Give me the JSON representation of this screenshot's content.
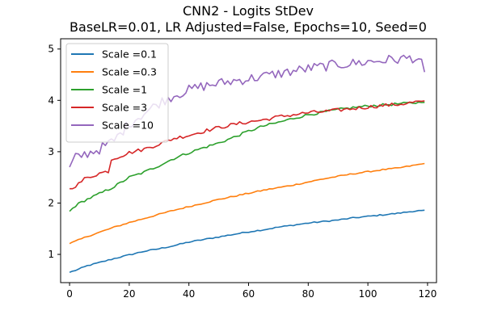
{
  "chart_data": {
    "type": "line",
    "title": "CNN2 - Logits StDev",
    "subtitle": "BaseLR=0.01, LR Adjusted=False, Epochs=10, Seed=0",
    "xlabel": "",
    "ylabel": "",
    "xlim": [
      -3,
      123
    ],
    "ylim": [
      0.45,
      5.2
    ],
    "xticks": [
      0,
      20,
      40,
      60,
      80,
      100,
      120
    ],
    "yticks": [
      1,
      2,
      3,
      4,
      5
    ],
    "grid": false,
    "legend_position": "top-left",
    "series": [
      {
        "name": "Scale =0.1",
        "color": "#1f77b4",
        "anchors": [
          [
            0,
            0.65
          ],
          [
            3,
            0.71
          ],
          [
            6,
            0.78
          ],
          [
            10,
            0.84
          ],
          [
            15,
            0.92
          ],
          [
            20,
            0.99
          ],
          [
            25,
            1.06
          ],
          [
            30,
            1.11
          ],
          [
            35,
            1.17
          ],
          [
            40,
            1.24
          ],
          [
            45,
            1.29
          ],
          [
            50,
            1.34
          ],
          [
            55,
            1.39
          ],
          [
            60,
            1.44
          ],
          [
            65,
            1.48
          ],
          [
            70,
            1.53
          ],
          [
            75,
            1.57
          ],
          [
            80,
            1.61
          ],
          [
            85,
            1.64
          ],
          [
            90,
            1.67
          ],
          [
            95,
            1.71
          ],
          [
            100,
            1.74
          ],
          [
            105,
            1.77
          ],
          [
            110,
            1.8
          ],
          [
            115,
            1.84
          ],
          [
            119,
            1.86
          ]
        ],
        "noise": 0.012
      },
      {
        "name": "Scale =0.3",
        "color": "#ff7f0e",
        "anchors": [
          [
            0,
            1.21
          ],
          [
            3,
            1.28
          ],
          [
            6,
            1.35
          ],
          [
            10,
            1.43
          ],
          [
            15,
            1.53
          ],
          [
            20,
            1.62
          ],
          [
            25,
            1.7
          ],
          [
            30,
            1.78
          ],
          [
            35,
            1.86
          ],
          [
            40,
            1.93
          ],
          [
            45,
            2.0
          ],
          [
            50,
            2.07
          ],
          [
            55,
            2.13
          ],
          [
            60,
            2.19
          ],
          [
            65,
            2.25
          ],
          [
            70,
            2.3
          ],
          [
            75,
            2.35
          ],
          [
            80,
            2.41
          ],
          [
            85,
            2.47
          ],
          [
            90,
            2.52
          ],
          [
            95,
            2.57
          ],
          [
            100,
            2.61
          ],
          [
            105,
            2.65
          ],
          [
            110,
            2.68
          ],
          [
            115,
            2.73
          ],
          [
            119,
            2.77
          ]
        ],
        "noise": 0.012
      },
      {
        "name": "Scale =1",
        "color": "#2ca02c",
        "anchors": [
          [
            0,
            1.84
          ],
          [
            2,
            1.95
          ],
          [
            5,
            2.05
          ],
          [
            10,
            2.18
          ],
          [
            15,
            2.32
          ],
          [
            20,
            2.5
          ],
          [
            25,
            2.6
          ],
          [
            30,
            2.73
          ],
          [
            35,
            2.87
          ],
          [
            40,
            2.98
          ],
          [
            45,
            3.08
          ],
          [
            50,
            3.17
          ],
          [
            55,
            3.28
          ],
          [
            60,
            3.4
          ],
          [
            65,
            3.5
          ],
          [
            70,
            3.57
          ],
          [
            75,
            3.65
          ],
          [
            80,
            3.72
          ],
          [
            85,
            3.77
          ],
          [
            90,
            3.82
          ],
          [
            95,
            3.86
          ],
          [
            100,
            3.89
          ],
          [
            105,
            3.91
          ],
          [
            110,
            3.93
          ],
          [
            115,
            3.95
          ],
          [
            119,
            3.96
          ]
        ],
        "noise": 0.025
      },
      {
        "name": "Scale =3",
        "color": "#d62728",
        "anchors": [
          [
            0,
            2.28
          ],
          [
            3,
            2.37
          ],
          [
            5,
            2.47
          ],
          [
            10,
            2.58
          ],
          [
            13,
            2.62
          ],
          [
            14,
            2.85
          ],
          [
            20,
            2.98
          ],
          [
            25,
            3.05
          ],
          [
            30,
            3.15
          ],
          [
            35,
            3.26
          ],
          [
            40,
            3.32
          ],
          [
            45,
            3.4
          ],
          [
            50,
            3.47
          ],
          [
            55,
            3.53
          ],
          [
            60,
            3.58
          ],
          [
            65,
            3.62
          ],
          [
            70,
            3.68
          ],
          [
            75,
            3.72
          ],
          [
            80,
            3.76
          ],
          [
            85,
            3.78
          ],
          [
            90,
            3.81
          ],
          [
            95,
            3.84
          ],
          [
            100,
            3.87
          ],
          [
            105,
            3.9
          ],
          [
            110,
            3.92
          ],
          [
            115,
            3.96
          ],
          [
            119,
            3.99
          ]
        ],
        "noise": 0.035
      },
      {
        "name": "Scale =10",
        "color": "#9467bd",
        "anchors": [
          [
            0,
            2.7
          ],
          [
            2,
            2.88
          ],
          [
            5,
            2.95
          ],
          [
            10,
            3.05
          ],
          [
            15,
            3.22
          ],
          [
            20,
            3.55
          ],
          [
            25,
            3.75
          ],
          [
            30,
            3.95
          ],
          [
            35,
            4.1
          ],
          [
            40,
            4.2
          ],
          [
            45,
            4.28
          ],
          [
            50,
            4.33
          ],
          [
            55,
            4.38
          ],
          [
            60,
            4.42
          ],
          [
            65,
            4.47
          ],
          [
            70,
            4.52
          ],
          [
            75,
            4.57
          ],
          [
            80,
            4.62
          ],
          [
            85,
            4.66
          ],
          [
            90,
            4.7
          ],
          [
            95,
            4.72
          ],
          [
            100,
            4.75
          ],
          [
            105,
            4.78
          ],
          [
            110,
            4.8
          ],
          [
            115,
            4.83
          ],
          [
            118,
            4.8
          ],
          [
            119,
            4.55
          ]
        ],
        "noise": 0.1
      }
    ]
  }
}
